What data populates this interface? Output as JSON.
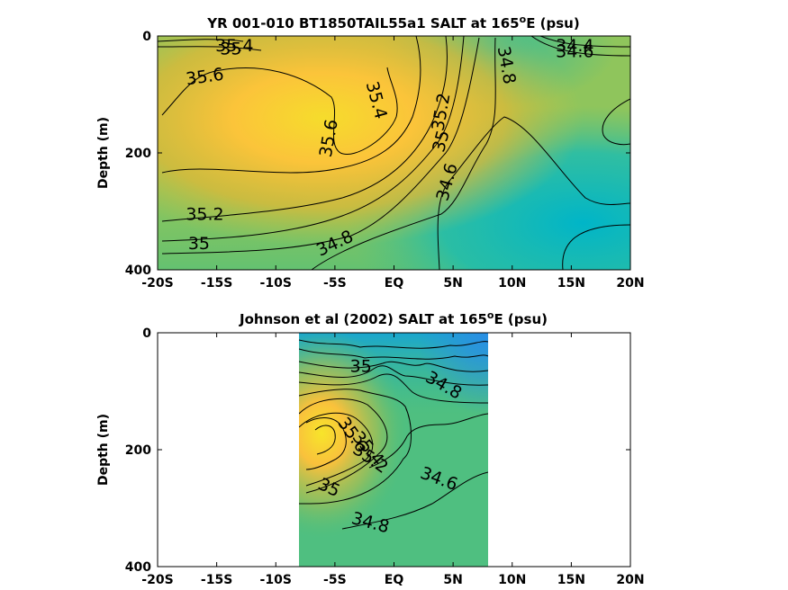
{
  "chart_data": [
    {
      "type": "contour",
      "title_main": "YR 001-010 BT1850TAIL55a1 SALT at 165",
      "title_sup": "o",
      "title_tail": "E (psu)",
      "ylabel": "Depth (m)",
      "xlim": [
        -20,
        20
      ],
      "ylim": [
        0,
        400
      ],
      "y_reversed": true,
      "x_ticks": [
        -20,
        -15,
        -10,
        -5,
        0,
        5,
        10,
        15,
        20
      ],
      "x_tick_labels": [
        "-20S",
        "-15S",
        "-10S",
        "-5S",
        "EQ",
        "5N",
        "10N",
        "15N",
        "20N"
      ],
      "y_ticks": [
        0,
        200,
        400
      ],
      "y_tick_labels": [
        "0",
        "200",
        "400"
      ],
      "data_extent_x": [
        -20,
        20
      ],
      "contour_labels": [
        {
          "text": "35.6",
          "x": -16.0,
          "y": 70,
          "angle": -8
        },
        {
          "text": "35.6",
          "x": -5.5,
          "y": 175,
          "angle": -80
        },
        {
          "text": "35.4",
          "x": -1.5,
          "y": 110,
          "angle": 75
        },
        {
          "text": "35.2",
          "x": 4.0,
          "y": 130,
          "angle": -80
        },
        {
          "text": "35",
          "x": 4.0,
          "y": 180,
          "angle": -75
        },
        {
          "text": "34.6",
          "x": 4.5,
          "y": 250,
          "angle": -75
        },
        {
          "text": "34.8",
          "x": 9.5,
          "y": 50,
          "angle": 80
        },
        {
          "text": "35.2",
          "x": -16.0,
          "y": 305,
          "angle": 0
        },
        {
          "text": "35",
          "x": -16.5,
          "y": 355,
          "angle": 0
        },
        {
          "text": "34.8",
          "x": -5.0,
          "y": 355,
          "angle": -25
        },
        {
          "text": "35.4",
          "x": -13.5,
          "y": 17,
          "angle": 0
        },
        {
          "text": "35",
          "x": -13.8,
          "y": 22,
          "angle": 0
        },
        {
          "text": "34.4",
          "x": 15.3,
          "y": 17,
          "angle": 0
        },
        {
          "text": "34.6",
          "x": 15.3,
          "y": 27,
          "angle": 0
        }
      ]
    },
    {
      "type": "contour",
      "title_main": "Johnson et al (2002) SALT at 165",
      "title_sup": "o",
      "title_tail": "E (psu)",
      "ylabel": "Depth (m)",
      "xlim": [
        -20,
        20
      ],
      "ylim": [
        0,
        400
      ],
      "y_reversed": true,
      "x_ticks": [
        -20,
        -15,
        -10,
        -5,
        0,
        5,
        10,
        15,
        20
      ],
      "x_tick_labels": [
        "-20S",
        "-15S",
        "-10S",
        "-5S",
        "EQ",
        "5N",
        "10N",
        "15N",
        "20N"
      ],
      "y_ticks": [
        0,
        200,
        400
      ],
      "y_tick_labels": [
        "0",
        "200",
        "400"
      ],
      "data_extent_x": [
        -8,
        8
      ],
      "contour_labels": [
        {
          "text": "35",
          "x": -2.8,
          "y": 58,
          "angle": 0
        },
        {
          "text": "34.8",
          "x": 4.2,
          "y": 90,
          "angle": 30
        },
        {
          "text": "35.6",
          "x": -3.5,
          "y": 175,
          "angle": 55
        },
        {
          "text": "35.4",
          "x": -2.2,
          "y": 198,
          "angle": 50
        },
        {
          "text": "35.2",
          "x": -2.0,
          "y": 215,
          "angle": 35
        },
        {
          "text": "35",
          "x": -5.5,
          "y": 265,
          "angle": 25
        },
        {
          "text": "34.6",
          "x": 3.8,
          "y": 250,
          "angle": 20
        },
        {
          "text": "34.8",
          "x": -2.0,
          "y": 325,
          "angle": 15
        }
      ]
    }
  ]
}
